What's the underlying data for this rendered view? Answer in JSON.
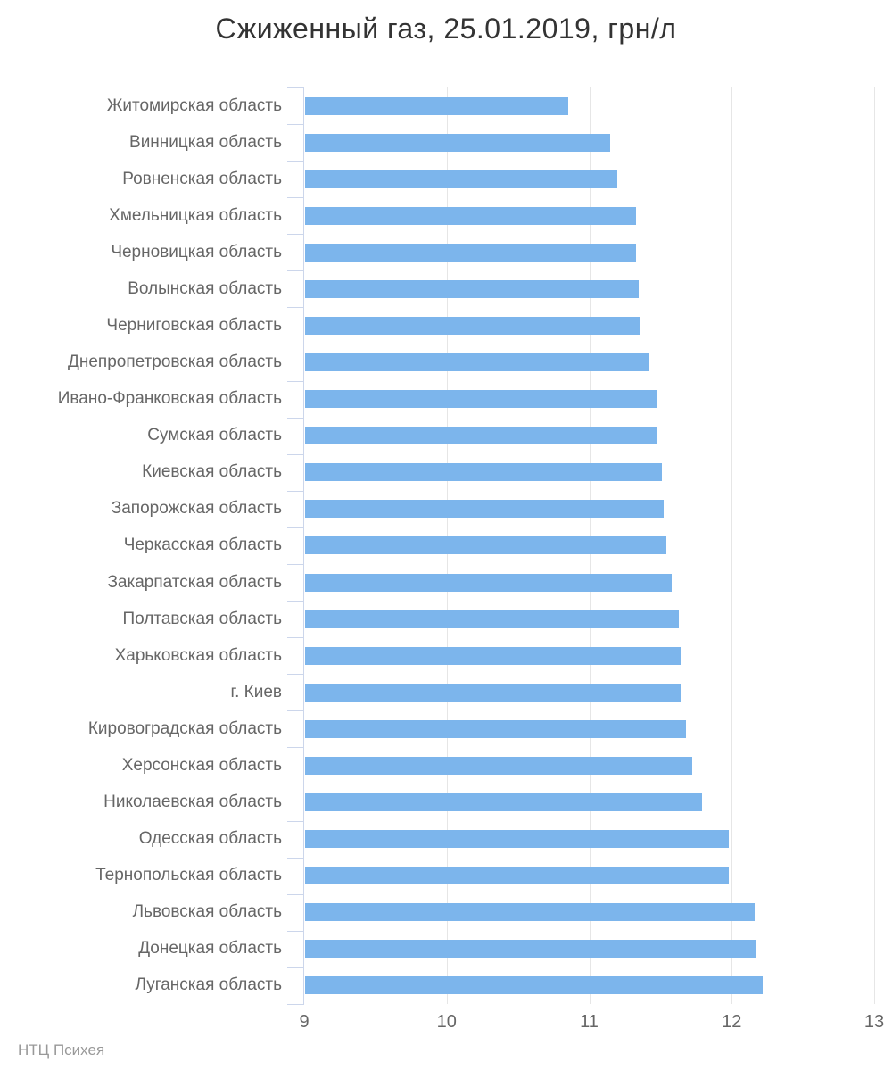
{
  "title": "Сжиженный газ, 25.01.2019, грн/л",
  "credits": "НТЦ Психея",
  "colors": {
    "bar": "#7cb5ec",
    "gridline": "#e6e6e6",
    "axis": "#ccd6eb",
    "title_text": "#333333",
    "label_text": "#666666",
    "credits_text": "#999999"
  },
  "chart_data": {
    "type": "bar",
    "orientation": "horizontal",
    "title": "Сжиженный газ, 25.01.2019, грн/л",
    "categories": [
      "Житомирская область",
      "Винницкая область",
      "Ровненская область",
      "Хмельницкая область",
      "Черновицкая область",
      "Волынская область",
      "Черниговская область",
      "Днепропетровская область",
      "Ивано-Франковская область",
      "Сумская область",
      "Киевская область",
      "Запорожская область",
      "Черкасская область",
      "Закарпатская область",
      "Полтавская область",
      "Харьковская область",
      "г. Киев",
      "Кировоградская область",
      "Херсонская область",
      "Николаевская область",
      "Одесская область",
      "Тернопольская область",
      "Львовская область",
      "Донецкая область",
      "Луганская область"
    ],
    "values": [
      10.85,
      11.15,
      11.2,
      11.33,
      11.33,
      11.35,
      11.36,
      11.42,
      11.47,
      11.48,
      11.51,
      11.52,
      11.54,
      11.58,
      11.63,
      11.64,
      11.65,
      11.68,
      11.72,
      11.79,
      11.98,
      11.98,
      12.16,
      12.17,
      12.22
    ],
    "xlabel": "",
    "ylabel": "",
    "xlim": [
      9,
      13
    ],
    "xticks": [
      9,
      10,
      11,
      12,
      13
    ],
    "grid": true,
    "legend": false
  }
}
